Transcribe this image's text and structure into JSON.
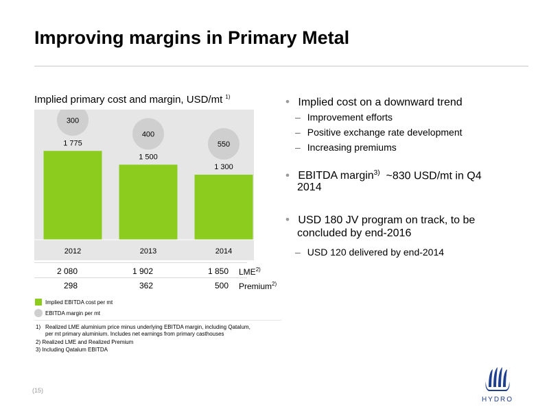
{
  "title": "Improving margins in Primary Metal",
  "chart_heading": "Implied primary cost and margin, USD/mt",
  "chart_heading_note": "1)",
  "chart_data": {
    "type": "bar",
    "categories": [
      "2012",
      "2013",
      "2014"
    ],
    "series": [
      {
        "name": "Implied EBITDA cost per mt",
        "values": [
          1775,
          1500,
          1300
        ],
        "labels": [
          "1 775",
          "1 500",
          "1 300"
        ],
        "color": "#8ccc1e"
      },
      {
        "name": "EBITDA margin per mt",
        "values": [
          300,
          400,
          550
        ],
        "labels": [
          "300",
          "400",
          "550"
        ],
        "color": "#cfcfcf"
      }
    ],
    "ylim": [
      0,
      2600
    ]
  },
  "table": {
    "rows": [
      {
        "values": [
          "2 080",
          "1 902",
          "1 850"
        ],
        "label": "LME",
        "note": "2)"
      },
      {
        "values": [
          "298",
          "362",
          "500"
        ],
        "label": "Premium",
        "note": "2)"
      }
    ]
  },
  "legend": {
    "green": "Implied EBITDA cost per mt",
    "grey": "EBITDA margin per mt"
  },
  "footnotes": {
    "f1_num": "1)",
    "f1_line1": "Realized LME aluminium price minus underlying EBITDA margin, including Qatalum,",
    "f1_line2": "per mt primary aluminium. Includes net earnings from primary casthouses",
    "f2": "2)  Realized LME and Realized Premium",
    "f3": "3)  Including Qatalum EBITDA"
  },
  "bullets": {
    "b1": "Implied cost on a downward trend",
    "b1_subs": [
      "Improvement efforts",
      "Positive exchange rate development",
      "Increasing premiums"
    ],
    "b2_pre": "EBITDA margin",
    "b2_sup": "3)",
    "b2_post": "  ~830 USD/mt in Q4",
    "b2_line2": "2014",
    "b3_line1": "USD 180 JV program on track, to be",
    "b3_line2": "concluded by end-2016",
    "b3_subs": [
      "USD 120 delivered by end-2014"
    ]
  },
  "page_number": "(15)",
  "logo_text": "HYDRO",
  "colors": {
    "bar": "#8ccc1e",
    "bubble": "#cfcfcf",
    "bullet": "#9a9a9a"
  }
}
